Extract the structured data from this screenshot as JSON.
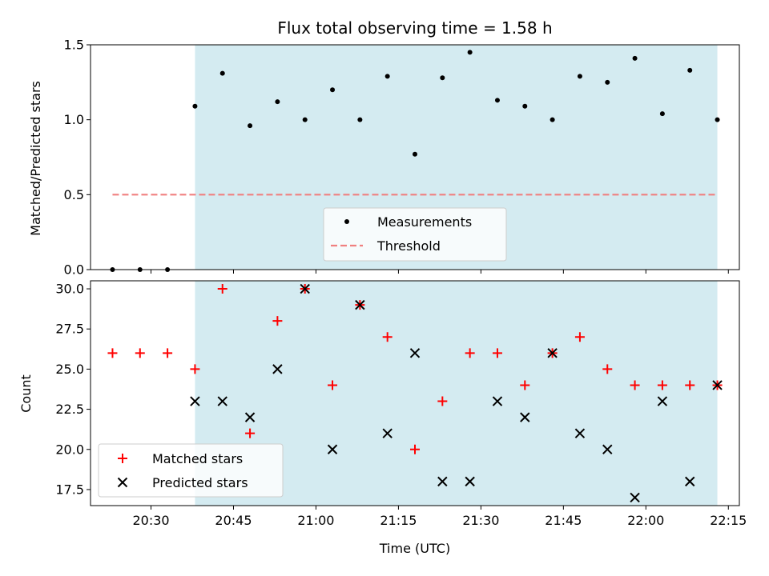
{
  "chart_data": {
    "type": "scatter",
    "title": "Flux total observing time = 1.58 h",
    "xlabel": "Time (UTC)",
    "x_ticks": [
      "20:30",
      "20:45",
      "21:00",
      "21:15",
      "21:30",
      "21:45",
      "22:00",
      "22:15"
    ],
    "x_times": [
      "20:23",
      "20:28",
      "20:33",
      "20:38",
      "20:43",
      "20:48",
      "20:53",
      "20:58",
      "21:03",
      "21:08",
      "21:13",
      "21:18",
      "21:23",
      "21:28",
      "21:33",
      "21:38",
      "21:43",
      "21:48",
      "21:53",
      "21:58",
      "22:03",
      "22:08",
      "22:13"
    ],
    "shaded_interval": [
      "20:38",
      "22:13"
    ],
    "shade_color": "#d4ebf1",
    "top_panel": {
      "ylabel": "Matched/Predicted stars",
      "ylim": [
        0,
        1.5
      ],
      "y_ticks": [
        "0.0",
        "0.5",
        "1.0",
        "1.5"
      ],
      "threshold": 0.5,
      "threshold_range": [
        "20:23",
        "22:13"
      ],
      "threshold_color": "#f08080",
      "legend": {
        "placement": "lower center",
        "measurements_label": "Measurements",
        "threshold_label": "Threshold"
      },
      "values": [
        0,
        0,
        0,
        1.09,
        1.31,
        0.96,
        1.12,
        1.0,
        1.2,
        1.0,
        1.29,
        0.77,
        1.28,
        1.45,
        1.13,
        1.09,
        1.0,
        1.29,
        1.25,
        1.41,
        1.04,
        1.33,
        1.0
      ]
    },
    "bottom_panel": {
      "ylabel": "Count",
      "ylim": [
        16.5,
        30.5
      ],
      "y_ticks": [
        "17.5",
        "20.0",
        "22.5",
        "25.0",
        "27.5",
        "30.0"
      ],
      "legend": {
        "placement": "lower left"
      },
      "series": [
        {
          "name": "Matched stars",
          "marker": "plus",
          "color": "#ff0000",
          "values": [
            26,
            26,
            26,
            25,
            30,
            21,
            28,
            30,
            24,
            29,
            27,
            20,
            23,
            26,
            26,
            24,
            26,
            27,
            25,
            24,
            24,
            24,
            24
          ]
        },
        {
          "name": "Predicted stars",
          "marker": "x",
          "color": "#000000",
          "values": [
            null,
            null,
            null,
            23,
            23,
            22,
            25,
            30,
            20,
            29,
            21,
            26,
            18,
            18,
            23,
            22,
            26,
            21,
            20,
            17,
            23,
            18,
            24
          ]
        }
      ]
    }
  }
}
